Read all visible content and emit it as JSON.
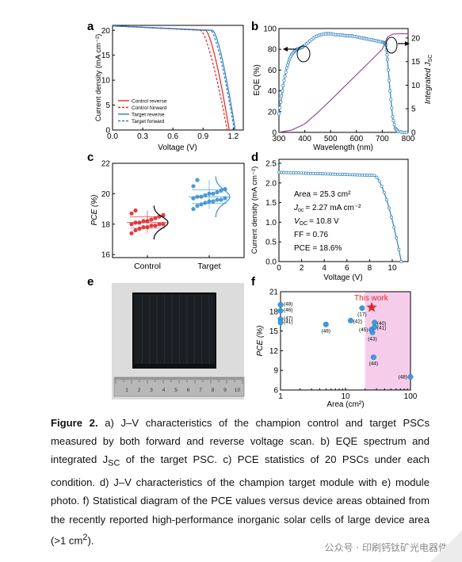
{
  "figure": {
    "panel_a": {
      "letter": "a",
      "ylabel": "Current density (mA cm⁻²)",
      "xlabel": "Voltage (V)",
      "xticks": [
        "0.0",
        "0.3",
        "0.6",
        "0.9",
        "1.2"
      ],
      "yticks": [
        "0",
        "5",
        "10",
        "15",
        "20"
      ],
      "legend": [
        "Control reverse",
        "Control forward",
        "Target reverse",
        "Target forward"
      ]
    },
    "panel_b": {
      "letter": "b",
      "ylabel": "EQE (%)",
      "y2label": "Integrated J",
      "y2label_sub": "SC",
      "xlabel": "Wavelength (nm)",
      "xticks": [
        "300",
        "400",
        "500",
        "600",
        "700",
        "800"
      ],
      "yticks": [
        "0",
        "20",
        "40",
        "60",
        "80",
        "100"
      ],
      "y2ticks": [
        "0",
        "5",
        "10",
        "15",
        "20"
      ]
    },
    "panel_c": {
      "letter": "c",
      "ylabel": "PCE (%)",
      "yticks": [
        "16",
        "18",
        "20",
        "22"
      ],
      "categories": [
        "Control",
        "Target"
      ]
    },
    "panel_d": {
      "letter": "d",
      "ylabel": "Current density (mA cm⁻²)",
      "xlabel": "Voltage (V)",
      "xticks": [
        "0",
        "2",
        "4",
        "6",
        "8",
        "10"
      ],
      "yticks": [
        "0.0",
        "0.5",
        "1.0",
        "1.5",
        "2.0",
        "2.5"
      ],
      "annotations": [
        "Area = 25.3 cm²",
        "J",
        "oc",
        "= 2.27 mA cm⁻²",
        "V",
        "OC",
        "= 10.8 V",
        "FF = 0.76",
        "PCE = 18.6%"
      ]
    },
    "panel_e": {
      "letter": "e",
      "ruler_marks": [
        "1",
        "2",
        "3",
        "4",
        "5",
        "6",
        "7",
        "8",
        "9",
        "10"
      ]
    },
    "panel_f": {
      "letter": "f",
      "ylabel": "PCE (%)",
      "xlabel": "Area (cm²)",
      "xticks": [
        "1",
        "10",
        "100"
      ],
      "yticks": [
        "6",
        "9",
        "12",
        "15",
        "18",
        "21"
      ],
      "highlight_label": "This work"
    }
  },
  "chart_data": [
    {
      "type": "line",
      "panel": "a",
      "xlabel": "Voltage (V)",
      "ylabel": "Current density (mA cm⁻²)",
      "xlim": [
        0,
        1.3
      ],
      "ylim": [
        0,
        21
      ],
      "series": [
        {
          "name": "Control reverse",
          "color": "#e2262b",
          "dash": "solid",
          "jsc": 20.9,
          "voc": 1.16,
          "knee": 0.93
        },
        {
          "name": "Control forward",
          "color": "#e2262b",
          "dash": "dashed",
          "jsc": 20.9,
          "voc": 1.14,
          "knee": 0.88
        },
        {
          "name": "Target reverse",
          "color": "#2a7fc0",
          "dash": "solid",
          "jsc": 20.9,
          "voc": 1.22,
          "knee": 1.0
        },
        {
          "name": "Target forward",
          "color": "#2a7fc0",
          "dash": "dashed",
          "jsc": 20.9,
          "voc": 1.21,
          "knee": 0.98
        }
      ]
    },
    {
      "type": "line",
      "panel": "b",
      "xlabel": "Wavelength (nm)",
      "ylabel": "EQE (%)",
      "xlim": [
        300,
        800
      ],
      "ylim": [
        0,
        100
      ],
      "y2lim": [
        0,
        22
      ],
      "series": [
        {
          "name": "EQE",
          "color": "#2a7fc0",
          "x": [
            300,
            310,
            320,
            330,
            340,
            350,
            360,
            370,
            380,
            390,
            400,
            420,
            440,
            460,
            480,
            500,
            520,
            540,
            560,
            580,
            600,
            620,
            640,
            660,
            680,
            700,
            710,
            715,
            720,
            730,
            740,
            750,
            760,
            780,
            800
          ],
          "y": [
            18,
            35,
            50,
            62,
            70,
            75,
            78,
            80,
            81,
            82,
            84,
            88,
            92,
            94,
            95,
            95,
            94,
            94,
            93,
            93,
            92,
            91,
            90,
            89,
            88,
            87,
            86,
            84,
            70,
            40,
            15,
            4,
            1,
            0,
            0
          ]
        },
        {
          "name": "Integrated JSC",
          "color": "#8b2a9c",
          "axis": "right",
          "x": [
            300,
            350,
            400,
            450,
            500,
            550,
            600,
            650,
            700,
            720,
            740,
            760,
            800
          ],
          "y": [
            0,
            0.5,
            1.8,
            4.2,
            6.8,
            9.5,
            12.2,
            14.9,
            17.6,
            20.2,
            20.8,
            20.9,
            20.9
          ]
        }
      ]
    },
    {
      "type": "scatter",
      "panel": "c",
      "ylabel": "PCE (%)",
      "categories": [
        "Control",
        "Target"
      ],
      "ylim": [
        15.8,
        22
      ],
      "series": [
        {
          "name": "Control",
          "color": "#e2262b",
          "values": [
            17.4,
            17.6,
            17.7,
            17.8,
            17.8,
            17.9,
            17.9,
            18.0,
            18.0,
            18.0,
            18.1,
            18.1,
            18.2,
            18.2,
            18.3,
            18.4,
            18.5,
            18.6,
            18.7,
            18.9
          ]
        },
        {
          "name": "Target",
          "color": "#3a8fd0",
          "values": [
            19.0,
            19.2,
            19.3,
            19.4,
            19.5,
            19.5,
            19.6,
            19.6,
            19.7,
            19.7,
            19.8,
            19.8,
            19.9,
            20.0,
            20.0,
            20.1,
            20.2,
            20.3,
            20.5,
            20.9
          ]
        }
      ]
    },
    {
      "type": "line",
      "panel": "d",
      "xlabel": "Voltage (V)",
      "ylabel": "Current density (mA cm⁻²)",
      "xlim": [
        0,
        11.4
      ],
      "ylim": [
        0,
        2.6
      ],
      "series": [
        {
          "name": "Target module",
          "color": "#2a7fc0",
          "jsc": 2.27,
          "voc": 10.8
        }
      ]
    },
    {
      "type": "scatter",
      "panel": "f",
      "xlabel": "Area (cm²)",
      "ylabel": "PCE (%)",
      "xscale": "log",
      "xlim": [
        1,
        100
      ],
      "ylim": [
        6,
        21
      ],
      "highlight_range": [
        20,
        100
      ],
      "points": [
        {
          "x": 1.0,
          "y": 19.0,
          "label": "(48)"
        },
        {
          "x": 1.0,
          "y": 18.1,
          "label": "(46)"
        },
        {
          "x": 1.0,
          "y": 16.8,
          "label": "(47)"
        },
        {
          "x": 1.0,
          "y": 16.3,
          "label": "(41)"
        },
        {
          "x": 5.0,
          "y": 16.0,
          "label": "(48)"
        },
        {
          "x": 12.0,
          "y": 16.6,
          "label": "(42)"
        },
        {
          "x": 18.0,
          "y": 18.5,
          "label": "(17)"
        },
        {
          "x": 25.0,
          "y": 15.2,
          "label": "(45)"
        },
        {
          "x": 26.0,
          "y": 14.8,
          "label": "(43)"
        },
        {
          "x": 28.0,
          "y": 15.6,
          "label": "(41)"
        },
        {
          "x": 28.0,
          "y": 16.3,
          "label": "(40)"
        },
        {
          "x": 27.0,
          "y": 11.0,
          "label": "(44)"
        },
        {
          "x": 100.0,
          "y": 8.0,
          "label": "(48)"
        }
      ],
      "this_work": {
        "x": 25.3,
        "y": 18.6,
        "label": "This work",
        "color": "#e2262b"
      }
    }
  ],
  "caption": {
    "label": "Figure 2.",
    "text": " a) J–V characteristics of the champion control and target PSCs measured by both forward and reverse voltage scan. b) EQE spectrum and integrated J",
    "sub1": "SC",
    "text2": " of the target PSC. c) PCE statistics of 20 PSCs under each condition. d) J–V characteristics of the champion target module with e) module photo. f) Statistical diagram of the PCE values versus device areas obtained from the recently reported high-performance inorganic solar cells of large device area (>1 cm",
    "sup": "2",
    "text3": ")."
  },
  "watermark": "公众号 · 印刷钙钛矿光电器件"
}
